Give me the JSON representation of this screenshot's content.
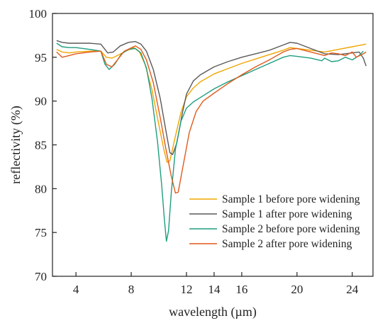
{
  "chart_data": {
    "type": "line",
    "xlabel": "wavelength (µm)",
    "ylabel": "reflectivity (%)",
    "xlim": [
      2.3,
      25.5
    ],
    "ylim": [
      70,
      100
    ],
    "xticks": [
      4,
      8,
      12,
      14,
      16,
      20,
      24
    ],
    "xtick_labels": [
      "4",
      "8",
      "12",
      "14",
      "16",
      "20",
      "24"
    ],
    "yticks": [
      70,
      75,
      80,
      85,
      90,
      95,
      100
    ],
    "ytick_labels": [
      "70",
      "75",
      "80",
      "85",
      "90",
      "95",
      "100"
    ],
    "grid": false,
    "legend_position": "lower-right",
    "series": [
      {
        "name": "Sample 1 before pore widening",
        "color": "#f0a500",
        "points": [
          [
            2.6,
            95.9
          ],
          [
            3,
            95.6
          ],
          [
            3.5,
            95.5
          ],
          [
            4,
            95.6
          ],
          [
            5,
            95.7
          ],
          [
            5.8,
            95.7
          ],
          [
            6.2,
            95.0
          ],
          [
            6.6,
            94.9
          ],
          [
            7,
            95.2
          ],
          [
            7.6,
            95.7
          ],
          [
            8.2,
            96.1
          ],
          [
            8.6,
            95.6
          ],
          [
            9,
            94.2
          ],
          [
            9.5,
            91.3
          ],
          [
            10,
            87.3
          ],
          [
            10.4,
            84.2
          ],
          [
            10.6,
            83.0
          ],
          [
            10.8,
            83.2
          ],
          [
            11.2,
            86.0
          ],
          [
            11.6,
            88.7
          ],
          [
            12,
            90.5
          ],
          [
            12.5,
            91.5
          ],
          [
            13,
            92.2
          ],
          [
            14,
            93.1
          ],
          [
            15,
            93.7
          ],
          [
            16,
            94.3
          ],
          [
            17,
            94.8
          ],
          [
            18,
            95.3
          ],
          [
            19,
            95.8
          ],
          [
            19.5,
            96.1
          ],
          [
            20,
            96.0
          ],
          [
            21,
            95.8
          ],
          [
            22,
            95.6
          ],
          [
            23,
            95.9
          ],
          [
            24,
            96.2
          ],
          [
            25,
            96.5
          ]
        ]
      },
      {
        "name": "Sample 1 after pore widening",
        "color": "#5a5a5a",
        "points": [
          [
            2.6,
            96.9
          ],
          [
            3,
            96.7
          ],
          [
            3.5,
            96.6
          ],
          [
            4,
            96.6
          ],
          [
            5,
            96.6
          ],
          [
            5.8,
            96.5
          ],
          [
            6.3,
            95.5
          ],
          [
            6.7,
            95.6
          ],
          [
            7.2,
            96.3
          ],
          [
            7.8,
            96.7
          ],
          [
            8.3,
            96.8
          ],
          [
            8.7,
            96.5
          ],
          [
            9.1,
            95.7
          ],
          [
            9.6,
            93.6
          ],
          [
            10.1,
            90.3
          ],
          [
            10.5,
            86.7
          ],
          [
            10.8,
            84.1
          ],
          [
            11.0,
            83.9
          ],
          [
            11.3,
            85.2
          ],
          [
            11.7,
            88.6
          ],
          [
            12,
            90.8
          ],
          [
            12.5,
            92.3
          ],
          [
            13,
            93.0
          ],
          [
            14,
            93.9
          ],
          [
            15,
            94.5
          ],
          [
            16,
            95.0
          ],
          [
            17,
            95.4
          ],
          [
            18,
            95.8
          ],
          [
            19,
            96.4
          ],
          [
            19.5,
            96.7
          ],
          [
            20,
            96.6
          ],
          [
            21,
            96.0
          ],
          [
            22,
            95.4
          ],
          [
            23,
            95.3
          ],
          [
            24,
            95.5
          ],
          [
            24.5,
            95.6
          ],
          [
            24.8,
            94.9
          ],
          [
            25,
            94.0
          ]
        ]
      },
      {
        "name": "Sample 2 before pore widening",
        "color": "#1e9e7e",
        "points": [
          [
            2.6,
            96.6
          ],
          [
            3,
            96.2
          ],
          [
            3.5,
            96.1
          ],
          [
            4,
            96.1
          ],
          [
            5,
            95.9
          ],
          [
            5.8,
            95.7
          ],
          [
            6.1,
            94.2
          ],
          [
            6.4,
            93.6
          ],
          [
            6.8,
            94.2
          ],
          [
            7.3,
            95.4
          ],
          [
            7.8,
            95.9
          ],
          [
            8.3,
            96.0
          ],
          [
            8.7,
            95.5
          ],
          [
            9.1,
            93.8
          ],
          [
            9.5,
            90.3
          ],
          [
            9.9,
            85.4
          ],
          [
            10.2,
            80.5
          ],
          [
            10.4,
            76.5
          ],
          [
            10.55,
            74.0
          ],
          [
            10.7,
            75.2
          ],
          [
            10.9,
            79.6
          ],
          [
            11.2,
            84.5
          ],
          [
            11.6,
            87.7
          ],
          [
            12,
            89.2
          ],
          [
            12.5,
            89.9
          ],
          [
            13,
            90.4
          ],
          [
            14,
            91.4
          ],
          [
            15,
            92.2
          ],
          [
            16,
            92.9
          ],
          [
            17,
            93.6
          ],
          [
            18,
            94.3
          ],
          [
            19,
            95.0
          ],
          [
            19.5,
            95.2
          ],
          [
            20,
            95.1
          ],
          [
            21,
            94.9
          ],
          [
            21.8,
            94.6
          ],
          [
            22,
            94.9
          ],
          [
            22.5,
            94.5
          ],
          [
            23,
            94.6
          ],
          [
            23.5,
            95.0
          ],
          [
            24,
            94.7
          ],
          [
            24.5,
            95.2
          ],
          [
            24.8,
            95.7
          ]
        ]
      },
      {
        "name": "Sample 2 after pore widening",
        "color": "#e05a1c",
        "points": [
          [
            2.6,
            95.6
          ],
          [
            3,
            95.0
          ],
          [
            3.5,
            95.2
          ],
          [
            4,
            95.4
          ],
          [
            5,
            95.6
          ],
          [
            5.8,
            95.7
          ],
          [
            6.2,
            94.2
          ],
          [
            6.6,
            93.9
          ],
          [
            7,
            94.7
          ],
          [
            7.5,
            95.7
          ],
          [
            8.3,
            96.3
          ],
          [
            8.7,
            95.9
          ],
          [
            9.1,
            94.7
          ],
          [
            9.6,
            92.1
          ],
          [
            10.1,
            88.1
          ],
          [
            10.5,
            84.6
          ],
          [
            10.9,
            81.4
          ],
          [
            11.2,
            79.5
          ],
          [
            11.4,
            79.6
          ],
          [
            11.8,
            83.0
          ],
          [
            12.2,
            86.4
          ],
          [
            12.7,
            88.8
          ],
          [
            13.2,
            90.0
          ],
          [
            14,
            90.9
          ],
          [
            15,
            92.0
          ],
          [
            16,
            93.0
          ],
          [
            17,
            93.9
          ],
          [
            18,
            94.7
          ],
          [
            19,
            95.6
          ],
          [
            19.5,
            95.9
          ],
          [
            20,
            96.0
          ],
          [
            21,
            95.6
          ],
          [
            22,
            95.2
          ],
          [
            22.5,
            95.5
          ],
          [
            23,
            95.4
          ],
          [
            23.5,
            95.2
          ],
          [
            24,
            95.6
          ],
          [
            24.3,
            95.0
          ],
          [
            24.8,
            95.4
          ],
          [
            25,
            95.6
          ]
        ]
      }
    ]
  }
}
